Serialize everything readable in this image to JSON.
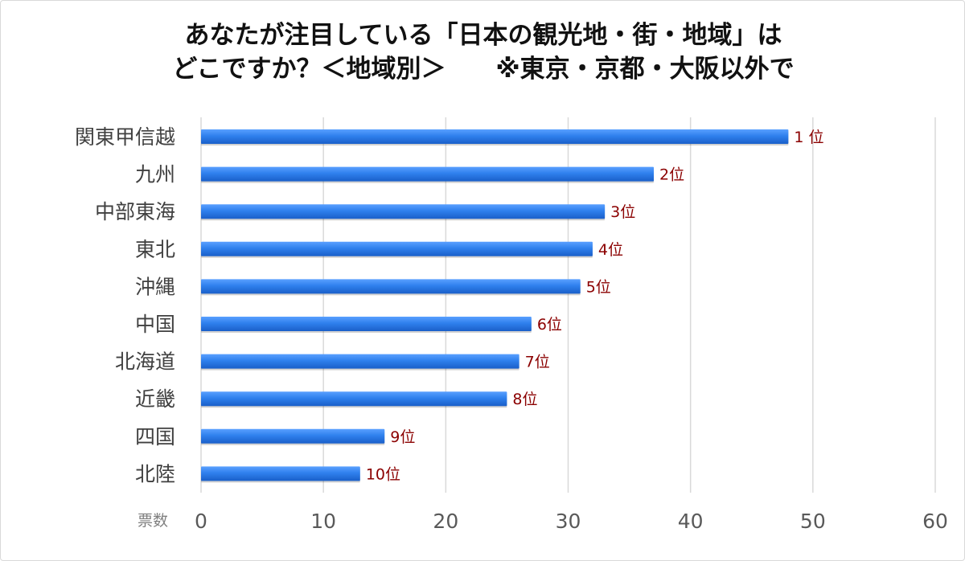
{
  "chart_data": {
    "type": "bar",
    "orientation": "horizontal",
    "title_lines": [
      "あなたが注目している「日本の観光地・街・地域」は",
      "どこですか？＜地域別＞　　※東京・京都・大阪以外で"
    ],
    "categories": [
      "関東甲信越",
      "九州",
      "中部東海",
      "東北",
      "沖縄",
      "中国",
      "北海道",
      "近畿",
      "四国",
      "北陸"
    ],
    "values": [
      48,
      37,
      33,
      32,
      31,
      27,
      26,
      25,
      15,
      13
    ],
    "data_labels": [
      "1 位",
      "2位",
      "3位",
      "4位",
      "5位",
      "6位",
      "7位",
      "8位",
      "9位",
      "10位"
    ],
    "xlabel": "票数",
    "ylabel": "",
    "xlim": [
      0,
      60
    ],
    "xticks": [
      0,
      10,
      20,
      30,
      40,
      50,
      60
    ],
    "grid": true,
    "legend": "none",
    "bar_color": "#2f80ed",
    "label_color": "#8b0000"
  }
}
